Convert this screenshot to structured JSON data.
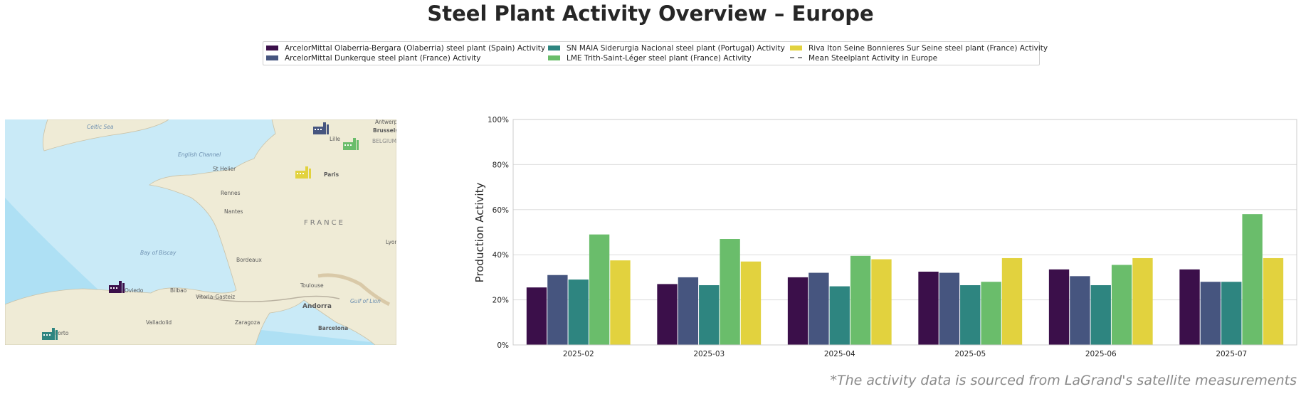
{
  "title": "Steel Plant Activity Overview – Europe",
  "legend": [
    {
      "label": "ArcelorMittal Olaberria-Bergara (Olaberria) steel plant (Spain) Activity",
      "color": "#3b0f4a",
      "style": "solid"
    },
    {
      "label": "ArcelorMittal Dunkerque steel plant (France) Activity",
      "color": "#46557f",
      "style": "solid"
    },
    {
      "label": "SN MAIA Siderurgia Nacional steel plant (Portugal) Activity",
      "color": "#2e8580",
      "style": "solid"
    },
    {
      "label": "LME Trith-Saint-Léger steel plant (France) Activity",
      "color": "#6abd6b",
      "style": "solid"
    },
    {
      "label": "Riva Iton Seine Bonnieres Sur Seine steel plant (France) Activity",
      "color": "#e2d23e",
      "style": "solid"
    },
    {
      "label": "Mean Steelplant Activity in Europe",
      "color": "#888888",
      "style": "dashed"
    }
  ],
  "map": {
    "labels": [
      "Celtic Sea",
      "English Channel",
      "Lille",
      "Brussels",
      "BELGIUM",
      "Antwerp",
      "St Helier",
      "Paris",
      "Rennes",
      "Nantes",
      "FRANCE",
      "Bay of Biscay",
      "Bordeaux",
      "Lyon",
      "Toulouse",
      "Bilbao",
      "Vitoria-Gasteiz",
      "Andorra",
      "Gulf of Lion",
      "Valladolid",
      "Zaragoza",
      "Barcelona",
      "Oviedo",
      "Porto"
    ]
  },
  "chart_data": {
    "type": "bar",
    "categories": [
      "2025-02",
      "2025-03",
      "2025-04",
      "2025-05",
      "2025-06",
      "2025-07"
    ],
    "series": [
      {
        "name": "ArcelorMittal Olaberria-Bergara (Olaberria) steel plant (Spain) Activity",
        "values": [
          25.5,
          27,
          30,
          32.5,
          33.5,
          33.5
        ]
      },
      {
        "name": "ArcelorMittal Dunkerque steel plant (France) Activity",
        "values": [
          31,
          30,
          32,
          32,
          30.5,
          28
        ]
      },
      {
        "name": "SN MAIA Siderurgia Nacional steel plant (Portugal) Activity",
        "values": [
          29,
          26.5,
          26,
          26.5,
          26.5,
          28
        ]
      },
      {
        "name": "LME Trith-Saint-Léger steel plant (France) Activity",
        "values": [
          49,
          47,
          39.5,
          28,
          35.5,
          58
        ]
      },
      {
        "name": "Riva Iton Seine Bonnieres Sur Seine steel plant (France) Activity",
        "values": [
          37.5,
          37,
          38,
          38.5,
          38.5,
          38.5
        ]
      }
    ],
    "ylabel": "Production Activity",
    "ylim": [
      0,
      100
    ],
    "yticks": [
      "0%",
      "20%",
      "40%",
      "60%",
      "80%",
      "100%"
    ],
    "grid": true,
    "legend_position": "top-center"
  },
  "footnote": "*The activity data is sourced from LaGrand's satellite measurements"
}
